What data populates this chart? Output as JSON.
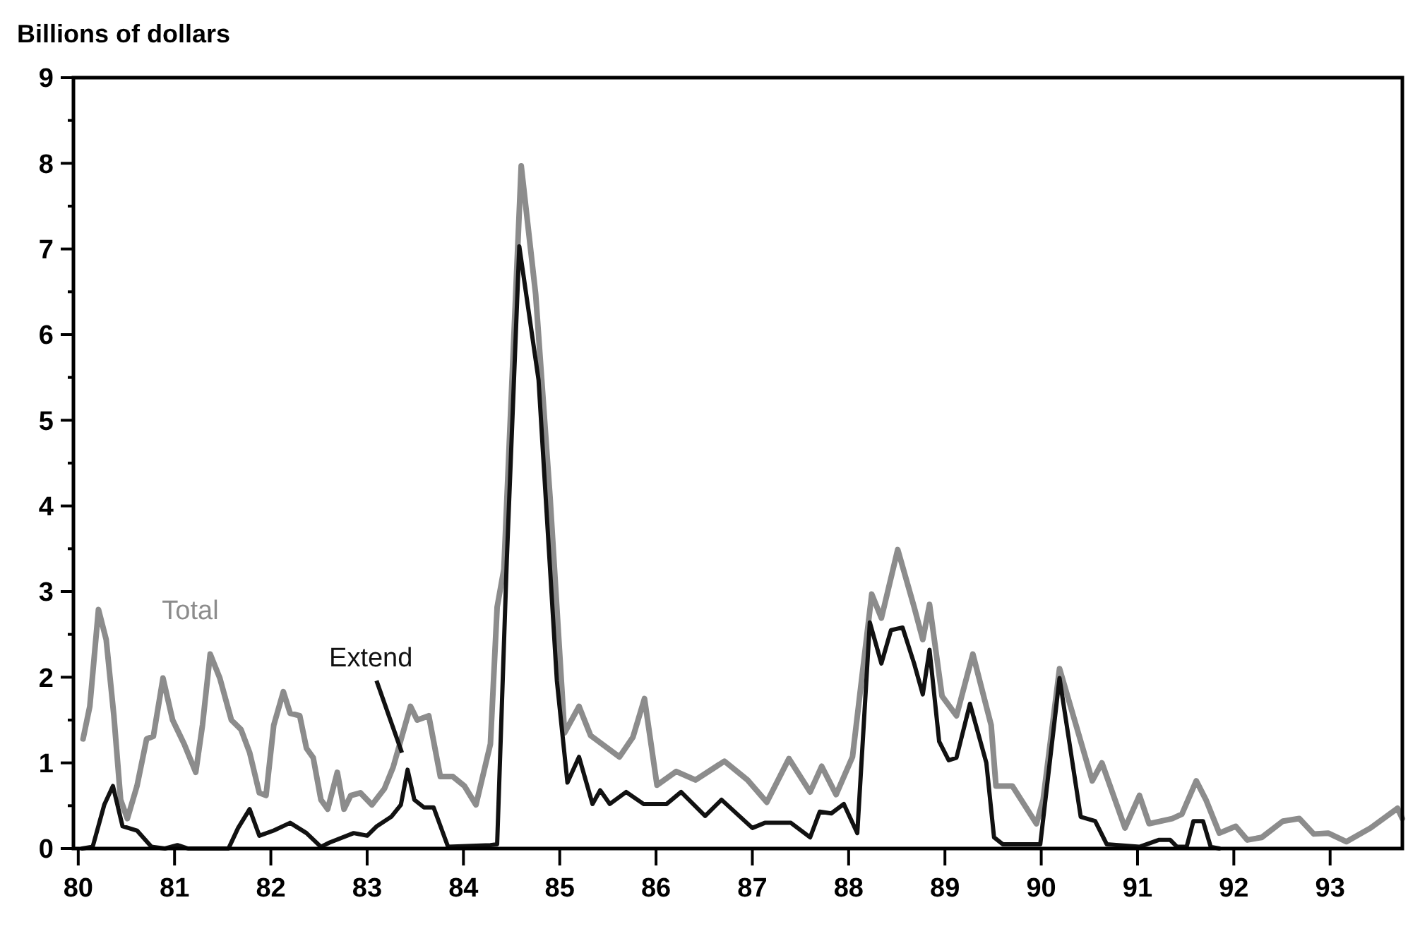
{
  "chart_data": {
    "type": "line",
    "ylabel": "Billions of dollars",
    "xlim": [
      79.95,
      93.75
    ],
    "ylim": [
      0,
      9
    ],
    "xticks": [
      {
        "value": 80,
        "label": "80"
      },
      {
        "value": 81,
        "label": "81"
      },
      {
        "value": 82,
        "label": "82"
      },
      {
        "value": 83,
        "label": "83"
      },
      {
        "value": 84,
        "label": "84"
      },
      {
        "value": 85,
        "label": "85"
      },
      {
        "value": 86,
        "label": "86"
      },
      {
        "value": 87,
        "label": "87"
      },
      {
        "value": 88,
        "label": "88"
      },
      {
        "value": 89,
        "label": "89"
      },
      {
        "value": 90,
        "label": "90"
      },
      {
        "value": 91,
        "label": "91"
      },
      {
        "value": 92,
        "label": "92"
      },
      {
        "value": 93,
        "label": "93"
      }
    ],
    "yticks": [
      0,
      {
        "value": 0.5,
        "label": null
      },
      1,
      {
        "value": 1.5,
        "label": null
      },
      2,
      {
        "value": 2.5,
        "label": null
      },
      3,
      {
        "value": 3.5,
        "label": null
      },
      4,
      {
        "value": 4.5,
        "label": null
      },
      5,
      {
        "value": 5.5,
        "label": null
      },
      6,
      {
        "value": 6.5,
        "label": null
      },
      7,
      {
        "value": 7.5,
        "label": null
      },
      8,
      {
        "value": 8.5,
        "label": null
      },
      9
    ],
    "grid": false,
    "marker": "none",
    "line_style": "solid",
    "series": [
      {
        "name": "Total",
        "color": "#8c8c8c",
        "x": [
          80.05,
          80.12,
          80.21,
          80.29,
          80.37,
          80.44,
          80.51,
          80.61,
          80.71,
          80.78,
          80.88,
          80.98,
          81.1,
          81.22,
          81.29,
          81.37,
          81.47,
          81.59,
          81.69,
          81.78,
          81.88,
          81.95,
          82.03,
          82.13,
          82.2,
          82.3,
          82.37,
          82.44,
          82.52,
          82.59,
          82.69,
          82.76,
          82.83,
          82.93,
          83.05,
          83.18,
          83.27,
          83.45,
          83.52,
          83.64,
          83.76,
          83.89,
          84.01,
          84.13,
          84.28,
          84.35,
          84.42,
          84.6,
          84.75,
          84.9,
          85.05,
          85.2,
          85.32,
          85.62,
          85.76,
          85.88,
          86.01,
          86.21,
          86.41,
          86.71,
          86.95,
          87.15,
          87.38,
          87.6,
          87.72,
          87.87,
          88.04,
          88.24,
          88.34,
          88.51,
          88.68,
          88.77,
          88.84,
          88.97,
          89.12,
          89.29,
          89.48,
          89.53,
          89.7,
          89.95,
          90.02,
          90.19,
          90.39,
          90.53,
          90.63,
          90.87,
          91.02,
          91.12,
          91.36,
          91.46,
          91.61,
          91.71,
          91.85,
          92.02,
          92.14,
          92.29,
          92.51,
          92.68,
          92.83,
          92.98,
          93.17,
          93.42,
          93.7,
          93.75
        ],
        "values": [
          1.28,
          1.66,
          2.79,
          2.44,
          1.55,
          0.57,
          0.35,
          0.73,
          1.28,
          1.31,
          1.99,
          1.5,
          1.22,
          0.89,
          1.44,
          2.27,
          1.99,
          1.5,
          1.39,
          1.12,
          0.65,
          0.62,
          1.44,
          1.83,
          1.58,
          1.55,
          1.17,
          1.06,
          0.57,
          0.46,
          0.89,
          0.46,
          0.62,
          0.65,
          0.51,
          0.7,
          0.95,
          1.66,
          1.5,
          1.55,
          0.84,
          0.84,
          0.73,
          0.51,
          1.22,
          2.82,
          3.26,
          7.97,
          6.47,
          4.09,
          1.35,
          1.66,
          1.32,
          1.07,
          1.3,
          1.75,
          0.74,
          0.9,
          0.8,
          1.02,
          0.8,
          0.54,
          1.05,
          0.66,
          0.96,
          0.63,
          1.07,
          2.97,
          2.69,
          3.49,
          2.82,
          2.44,
          2.85,
          1.78,
          1.55,
          2.27,
          1.44,
          0.73,
          0.73,
          0.29,
          0.57,
          2.1,
          1.33,
          0.79,
          1.0,
          0.24,
          0.62,
          0.29,
          0.35,
          0.4,
          0.79,
          0.57,
          0.18,
          0.26,
          0.1,
          0.13,
          0.32,
          0.35,
          0.17,
          0.18,
          0.08,
          0.24,
          0.47,
          0.35
        ]
      },
      {
        "name": "Extend",
        "color": "#111111",
        "x": [
          80.04,
          80.15,
          80.27,
          80.36,
          80.46,
          80.61,
          80.76,
          80.9,
          81.03,
          81.14,
          81.56,
          81.66,
          81.78,
          81.88,
          82.03,
          82.2,
          82.37,
          82.52,
          82.61,
          82.86,
          83.0,
          83.1,
          83.25,
          83.35,
          83.42,
          83.49,
          83.59,
          83.69,
          83.84,
          84.28,
          84.35,
          84.45,
          84.58,
          84.78,
          84.97,
          85.08,
          85.2,
          85.34,
          85.42,
          85.52,
          85.69,
          85.87,
          86.11,
          86.26,
          86.51,
          86.68,
          87.0,
          87.13,
          87.4,
          87.6,
          87.7,
          87.82,
          87.95,
          88.09,
          88.22,
          88.34,
          88.44,
          88.56,
          88.68,
          88.77,
          88.84,
          88.94,
          89.04,
          89.12,
          89.26,
          89.43,
          89.51,
          89.6,
          89.99,
          90.19,
          90.41,
          90.56,
          90.68,
          91.02,
          91.22,
          91.34,
          91.41,
          91.51,
          91.58,
          91.68,
          91.76,
          91.85
        ],
        "values": [
          0,
          0.02,
          0.51,
          0.73,
          0.26,
          0.21,
          0.02,
          0,
          0.04,
          0,
          0,
          0.24,
          0.46,
          0.15,
          0.21,
          0.3,
          0.18,
          0.02,
          0.07,
          0.18,
          0.15,
          0.26,
          0.37,
          0.51,
          0.92,
          0.57,
          0.48,
          0.48,
          0.02,
          0.04,
          0.05,
          3.36,
          7.03,
          5.47,
          1.96,
          0.77,
          1.07,
          0.52,
          0.68,
          0.52,
          0.66,
          0.52,
          0.52,
          0.66,
          0.38,
          0.57,
          0.24,
          0.3,
          0.3,
          0.13,
          0.43,
          0.41,
          0.52,
          0.18,
          2.64,
          2.16,
          2.55,
          2.58,
          2.16,
          1.8,
          2.32,
          1.25,
          1.03,
          1.06,
          1.69,
          1.0,
          0.13,
          0.05,
          0.05,
          1.99,
          0.37,
          0.32,
          0.05,
          0.02,
          0.1,
          0.1,
          0.02,
          0.02,
          0.32,
          0.32,
          0.02,
          0
        ]
      }
    ]
  }
}
